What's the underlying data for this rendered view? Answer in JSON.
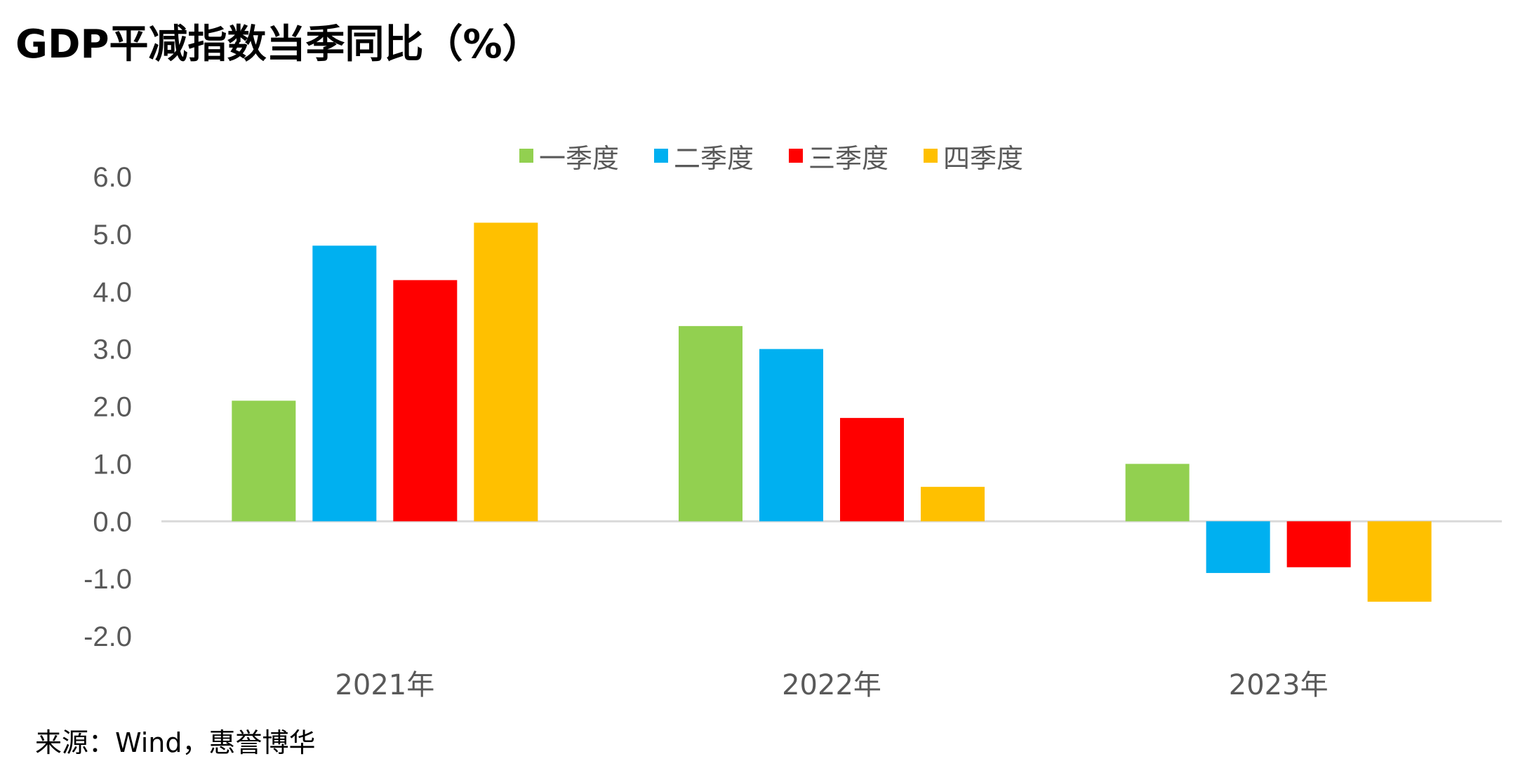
{
  "title": "GDP平减指数当季同比（%）",
  "source": "来源：Wind，惠誉博华",
  "chart_data": {
    "type": "bar",
    "title": "GDP平减指数当季同比（%）",
    "categories": [
      "2021年",
      "2022年",
      "2023年"
    ],
    "series": [
      {
        "name": "一季度",
        "color": "#92D050",
        "values": [
          2.1,
          3.4,
          1.0
        ]
      },
      {
        "name": "二季度",
        "color": "#00B0F0",
        "values": [
          4.8,
          3.0,
          -0.9
        ]
      },
      {
        "name": "三季度",
        "color": "#FF0000",
        "values": [
          4.2,
          1.8,
          -0.8
        ]
      },
      {
        "name": "四季度",
        "color": "#FFC000",
        "values": [
          5.2,
          0.6,
          -1.4
        ]
      }
    ],
    "ylim": [
      -2.0,
      6.0
    ],
    "yticks": [
      "6.0",
      "5.0",
      "4.0",
      "3.0",
      "2.0",
      "1.0",
      "0.0",
      "-1.0",
      "-2.0"
    ],
    "ytick_values": [
      6,
      5,
      4,
      3,
      2,
      1,
      0,
      -1,
      -2
    ],
    "xlabel": "",
    "ylabel": "",
    "legend": "top",
    "grid": false
  }
}
